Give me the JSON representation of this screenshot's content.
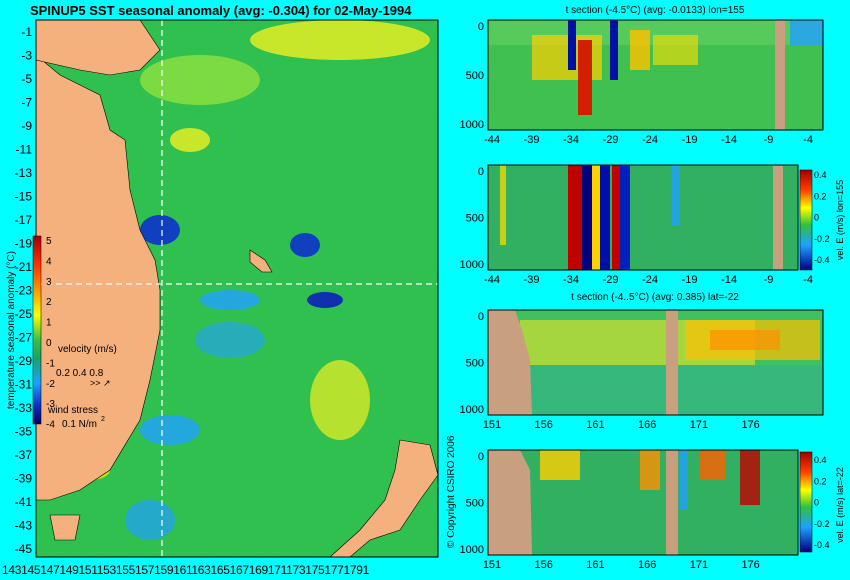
{
  "main_title": "SPINUP5 SST seasonal anomaly (avg: -0.304) for 02-May-1994",
  "map": {
    "lat_ticks": [
      "-1",
      "-3",
      "-5",
      "-7",
      "-9",
      "-11",
      "-13",
      "-15",
      "-17",
      "-19",
      "-21",
      "-23",
      "-25",
      "-27",
      "-29",
      "-31",
      "-33",
      "-35",
      "-37",
      "-39",
      "-41",
      "-43",
      "-45"
    ],
    "lon_ticks": [
      "143",
      "145",
      "147",
      "149",
      "151",
      "153",
      "155",
      "157",
      "159",
      "161",
      "163",
      "165",
      "167",
      "169",
      "171",
      "173",
      "175",
      "177",
      "179"
    ],
    "lon_tick_string": "1431451471491511531551571591611631651671691711731751771791",
    "colorbar_label": "temperature seasonal anomaly (°C)",
    "colorbar_ticks": [
      "5",
      "4",
      "3",
      "2",
      "1",
      "0",
      "-1",
      "-2",
      "-3",
      "-4"
    ],
    "velocity_label": "velocity (m/s)",
    "velocity_values": "0.2 0.4 0.8",
    "wind_label": "wind stress",
    "wind_value": "0.1 N/m",
    "wind_sup": "2",
    "colors": {
      "land": "#f4b07d",
      "ocean_mid": "#30c050",
      "warm": "#ffe000",
      "cool": "#1050d0",
      "line": "#ffffff"
    }
  },
  "copyright": "© Copyright CSIRO 2006",
  "sections": [
    {
      "title": "t section (-4.5°C) (avg: -0.0133) lon=155",
      "x_ticks": [
        "-44",
        "-39",
        "-34",
        "-29",
        "-24",
        "-19",
        "-14",
        "-9",
        "-4"
      ],
      "y_ticks": [
        "0",
        "500",
        "1000"
      ]
    },
    {
      "title": "",
      "x_ticks": [
        "-44",
        "-39",
        "-34",
        "-29",
        "-24",
        "-19",
        "-14",
        "-9",
        "-4"
      ],
      "y_ticks": [
        "0",
        "500",
        "1000"
      ],
      "colorbar_ticks": [
        "0.4",
        "0.2",
        "0",
        "-0.2",
        "-0.4"
      ],
      "colorbar_label": "vel. E (m/s) lon=155"
    },
    {
      "title": "t section (-4..5°C) (avg: 0.385) lat=-22",
      "x_ticks": [
        "151",
        "156",
        "161",
        "166",
        "171",
        "176"
      ],
      "y_ticks": [
        "0",
        "500",
        "1000"
      ]
    },
    {
      "title": "",
      "x_ticks": [
        "151",
        "156",
        "161",
        "166",
        "171",
        "176"
      ],
      "y_ticks": [
        "0",
        "500",
        "1000"
      ],
      "colorbar_ticks": [
        "0.4",
        "0.2",
        "0",
        "-0.2",
        "-0.4"
      ],
      "colorbar_label": "vel. E (m/s) lat=-22"
    }
  ],
  "chart_data": [
    {
      "type": "heatmap",
      "title": "SPINUP5 SST seasonal anomaly (avg: -0.304) for 02-May-1994",
      "x_ticks": [
        143,
        145,
        147,
        149,
        151,
        153,
        155,
        157,
        159,
        161,
        163,
        165,
        167,
        169,
        171,
        173,
        175,
        177,
        179
      ],
      "y_ticks": [
        -1,
        -3,
        -5,
        -7,
        -9,
        -11,
        -13,
        -15,
        -17,
        -19,
        -21,
        -23,
        -25,
        -27,
        -29,
        -31,
        -33,
        -35,
        -37,
        -39,
        -41,
        -43,
        -45
      ],
      "ylim": [
        -45,
        0
      ],
      "xlim": [
        143,
        180
      ],
      "colorbar": {
        "label": "temperature seasonal anomaly (°C)",
        "range": [
          -4,
          5
        ]
      },
      "section_lines": {
        "lon": 155,
        "lat": -22
      }
    },
    {
      "type": "heatmap",
      "title": "t section (-4.5°C) (avg: -0.0133) lon=155",
      "x_ticks": [
        -44,
        -39,
        -34,
        -29,
        -24,
        -19,
        -14,
        -9,
        -4
      ],
      "y_ticks": [
        0,
        500,
        1000
      ]
    },
    {
      "type": "heatmap",
      "x_ticks": [
        -44,
        -39,
        -34,
        -29,
        -24,
        -19,
        -14,
        -9,
        -4
      ],
      "y_ticks": [
        0,
        500,
        1000
      ],
      "colorbar": {
        "label": "vel. E (m/s) lon=155",
        "range": [
          -0.4,
          0.4
        ]
      }
    },
    {
      "type": "heatmap",
      "title": "t section (-4..5°C) (avg: 0.385) lat=-22",
      "x_ticks": [
        151,
        156,
        161,
        166,
        171,
        176
      ],
      "y_ticks": [
        0,
        500,
        1000
      ]
    },
    {
      "type": "heatmap",
      "x_ticks": [
        151,
        156,
        161,
        166,
        171,
        176
      ],
      "y_ticks": [
        0,
        500,
        1000
      ],
      "colorbar": {
        "label": "vel. E (m/s) lat=-22",
        "range": [
          -0.4,
          0.4
        ]
      }
    }
  ]
}
